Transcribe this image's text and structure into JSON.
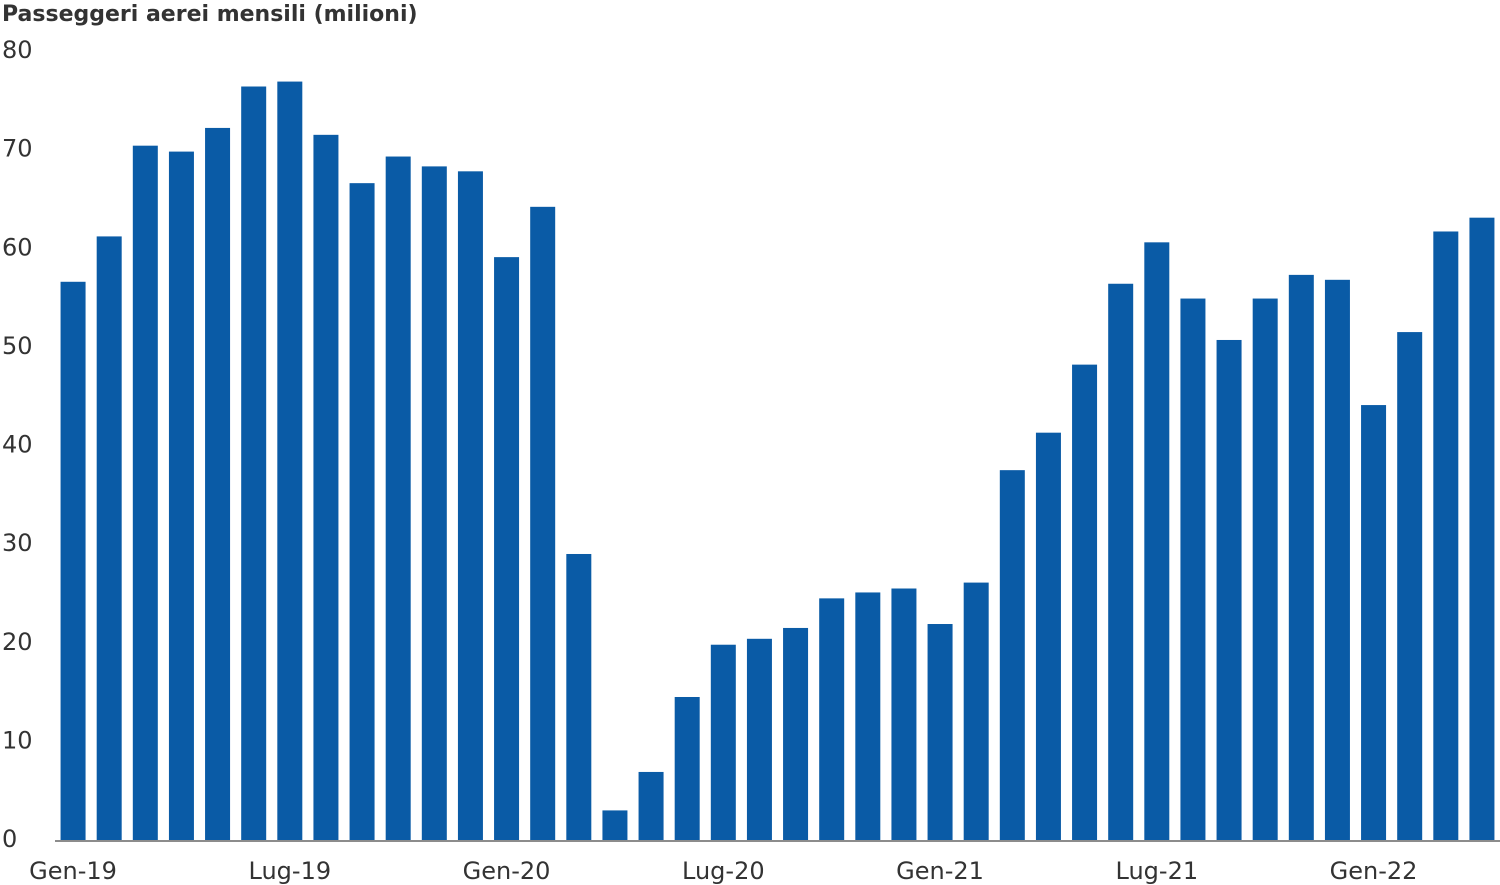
{
  "chart_data": {
    "type": "bar",
    "title": "Passeggeri aerei mensili (milioni)",
    "categories": [
      "Gen-19",
      null,
      null,
      null,
      null,
      null,
      "Lug-19",
      null,
      null,
      null,
      null,
      null,
      "Gen-20",
      null,
      null,
      null,
      null,
      null,
      "Lug-20",
      null,
      null,
      null,
      null,
      null,
      "Gen-21",
      null,
      null,
      null,
      null,
      null,
      "Lug-21",
      null,
      null,
      null,
      null,
      null,
      "Gen-22",
      null,
      null,
      null
    ],
    "values": [
      56.6,
      61.2,
      70.4,
      69.8,
      72.2,
      76.4,
      76.9,
      71.5,
      66.6,
      69.3,
      68.3,
      67.8,
      59.1,
      64.2,
      29.0,
      3.0,
      6.9,
      14.5,
      19.8,
      20.4,
      21.5,
      24.5,
      25.1,
      25.5,
      21.9,
      26.1,
      37.5,
      41.3,
      48.2,
      56.4,
      60.6,
      54.9,
      50.7,
      54.9,
      57.3,
      56.8,
      44.1,
      51.5,
      61.7,
      63.1
    ],
    "color": "#0a5ba6",
    "ylim": [
      0,
      80
    ],
    "yticks": [
      0,
      10,
      20,
      30,
      40,
      50,
      60,
      70,
      80
    ],
    "grid": false
  }
}
